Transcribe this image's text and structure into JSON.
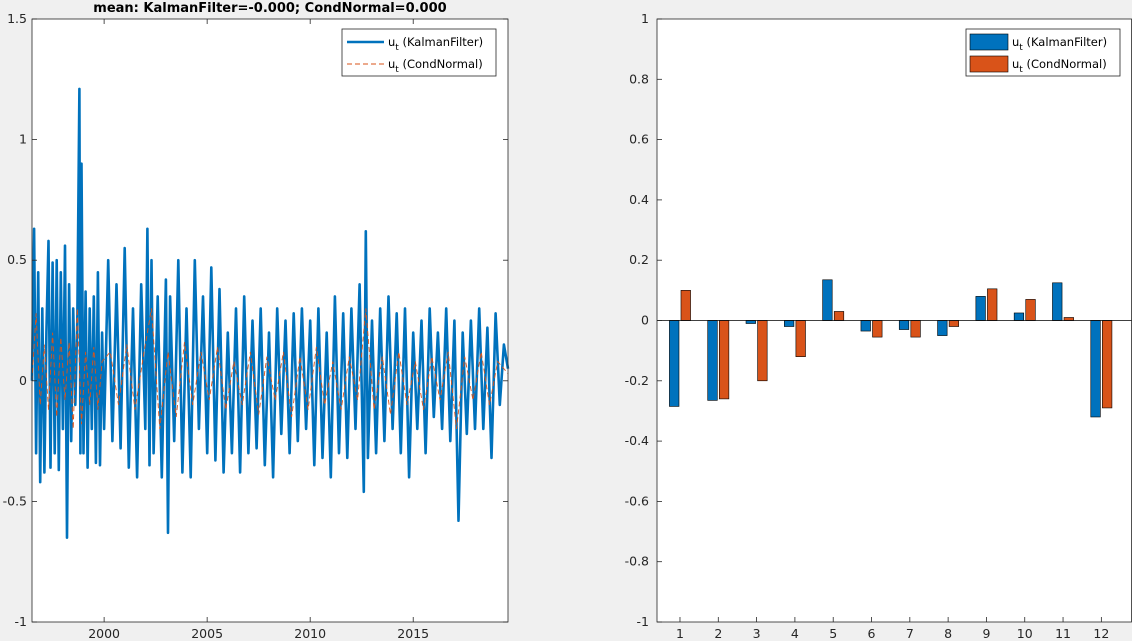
{
  "figure": {
    "left_title": "mean: KalmanFilter=-0.000; CondNormal=0.000"
  },
  "colors": {
    "kalman": "#0072BD",
    "condnormal": "#D95319",
    "axis": "#262626",
    "background": "#f0f0f0"
  },
  "chart_data": [
    {
      "type": "line",
      "title": "mean: KalmanFilter=-0.000; CondNormal=0.000",
      "xlabel": "",
      "ylabel": "",
      "xlim": [
        1996.5,
        2019.6
      ],
      "ylim": [
        -1,
        1.5
      ],
      "x_ticks": [
        2000,
        2005,
        2010,
        2015
      ],
      "x_tick_labels": [
        "2000",
        "2005",
        "2010",
        "2015"
      ],
      "y_ticks": [
        -1,
        -0.5,
        0,
        0.5,
        1,
        1.5
      ],
      "y_tick_labels": [
        "-1",
        "-0.5",
        "0",
        "0.5",
        "1",
        "1.5"
      ],
      "legend_position": "top-right",
      "grid": false,
      "series": [
        {
          "name": "u_t (KalmanFilter)",
          "legend_main": "u",
          "legend_sub": "t",
          "legend_rest": " (KalmanFilter)",
          "style": "solid",
          "x": [
            1996.5,
            1996.6,
            1996.7,
            1996.8,
            1996.9,
            1997.0,
            1997.1,
            1997.2,
            1997.3,
            1997.4,
            1997.5,
            1997.6,
            1997.7,
            1997.8,
            1997.9,
            1998.0,
            1998.1,
            1998.2,
            1998.3,
            1998.4,
            1998.5,
            1998.6,
            1998.7,
            1998.8,
            1998.85,
            1998.9,
            1999.0,
            1999.1,
            1999.2,
            1999.3,
            1999.4,
            1999.5,
            1999.6,
            1999.7,
            1999.8,
            1999.9,
            2000.0,
            2000.2,
            2000.4,
            2000.6,
            2000.8,
            2001.0,
            2001.2,
            2001.4,
            2001.6,
            2001.8,
            2002.0,
            2002.1,
            2002.2,
            2002.3,
            2002.4,
            2002.6,
            2002.8,
            2003.0,
            2003.1,
            2003.2,
            2003.4,
            2003.6,
            2003.8,
            2004.0,
            2004.2,
            2004.4,
            2004.6,
            2004.8,
            2005.0,
            2005.2,
            2005.4,
            2005.6,
            2005.8,
            2006.0,
            2006.2,
            2006.4,
            2006.6,
            2006.8,
            2007.0,
            2007.2,
            2007.4,
            2007.6,
            2007.8,
            2008.0,
            2008.2,
            2008.4,
            2008.6,
            2008.8,
            2009.0,
            2009.2,
            2009.4,
            2009.6,
            2009.8,
            2010.0,
            2010.2,
            2010.4,
            2010.6,
            2010.8,
            2011.0,
            2011.2,
            2011.4,
            2011.6,
            2011.8,
            2012.0,
            2012.2,
            2012.4,
            2012.6,
            2012.7,
            2012.8,
            2013.0,
            2013.2,
            2013.4,
            2013.6,
            2013.8,
            2014.0,
            2014.2,
            2014.4,
            2014.6,
            2014.8,
            2015.0,
            2015.2,
            2015.4,
            2015.6,
            2015.8,
            2016.0,
            2016.2,
            2016.4,
            2016.6,
            2016.8,
            2017.0,
            2017.2,
            2017.4,
            2017.6,
            2017.8,
            2018.0,
            2018.2,
            2018.4,
            2018.6,
            2018.8,
            2019.0,
            2019.2,
            2019.4,
            2019.6
          ],
          "y": [
            0.0,
            0.63,
            -0.3,
            0.45,
            -0.42,
            0.3,
            -0.38,
            0.2,
            0.58,
            -0.36,
            0.49,
            -0.3,
            0.5,
            -0.37,
            0.45,
            -0.2,
            0.56,
            -0.65,
            0.4,
            -0.25,
            0.3,
            -0.1,
            0.25,
            1.21,
            -0.3,
            0.9,
            -0.3,
            0.37,
            -0.36,
            0.3,
            -0.2,
            0.35,
            -0.34,
            0.45,
            -0.35,
            0.2,
            -0.2,
            0.5,
            -0.25,
            0.4,
            -0.28,
            0.55,
            -0.36,
            0.3,
            -0.4,
            0.4,
            -0.2,
            0.63,
            -0.35,
            0.5,
            -0.3,
            0.35,
            -0.4,
            0.42,
            -0.63,
            0.35,
            -0.25,
            0.5,
            -0.38,
            0.3,
            -0.4,
            0.5,
            -0.2,
            0.35,
            -0.3,
            0.47,
            -0.33,
            0.38,
            -0.38,
            0.2,
            -0.3,
            0.3,
            -0.38,
            0.35,
            -0.3,
            0.25,
            -0.28,
            0.3,
            -0.35,
            0.2,
            -0.4,
            0.3,
            -0.22,
            0.25,
            -0.3,
            0.28,
            -0.25,
            0.3,
            -0.2,
            0.25,
            -0.35,
            0.3,
            -0.32,
            0.2,
            -0.4,
            0.35,
            -0.3,
            0.28,
            -0.32,
            0.3,
            -0.2,
            0.4,
            -0.46,
            0.62,
            -0.32,
            0.25,
            -0.3,
            0.3,
            -0.25,
            0.35,
            -0.2,
            0.28,
            -0.3,
            0.3,
            -0.4,
            0.2,
            -0.2,
            0.25,
            -0.3,
            0.3,
            -0.15,
            0.2,
            -0.2,
            0.3,
            -0.25,
            0.25,
            -0.58,
            0.2,
            -0.22,
            0.25,
            -0.2,
            0.3,
            -0.2,
            0.22,
            -0.32,
            0.28,
            -0.1,
            0.15,
            0.05
          ]
        },
        {
          "name": "u_t (CondNormal)",
          "legend_main": "u",
          "legend_sub": "t",
          "legend_rest": " (CondNormal)",
          "style": "dashed",
          "x": [
            1996.5,
            1996.7,
            1996.9,
            1997.1,
            1997.3,
            1997.5,
            1997.7,
            1997.9,
            1998.1,
            1998.3,
            1998.5,
            1998.7,
            1998.9,
            1999.1,
            1999.3,
            1999.5,
            1999.7,
            1999.9,
            2000.3,
            2000.7,
            2001.1,
            2001.5,
            2001.9,
            2002.3,
            2002.7,
            2003.1,
            2003.5,
            2003.9,
            2004.3,
            2004.7,
            2005.1,
            2005.5,
            2005.9,
            2006.3,
            2006.7,
            2007.1,
            2007.5,
            2007.9,
            2008.3,
            2008.7,
            2009.1,
            2009.5,
            2009.9,
            2010.3,
            2010.7,
            2011.1,
            2011.5,
            2011.9,
            2012.3,
            2012.7,
            2013.1,
            2013.5,
            2013.9,
            2014.3,
            2014.7,
            2015.1,
            2015.5,
            2015.9,
            2016.3,
            2016.7,
            2017.1,
            2017.5,
            2017.9,
            2018.3,
            2018.7,
            2019.1,
            2019.6
          ],
          "y": [
            0.0,
            0.28,
            -0.1,
            0.15,
            -0.12,
            0.2,
            -0.15,
            0.18,
            -0.08,
            0.16,
            -0.2,
            0.3,
            -0.18,
            0.12,
            -0.1,
            0.14,
            -0.12,
            0.08,
            0.12,
            -0.1,
            0.15,
            -0.12,
            0.1,
            0.3,
            -0.2,
            0.12,
            -0.15,
            0.16,
            -0.1,
            0.12,
            -0.08,
            0.14,
            -0.12,
            0.08,
            -0.1,
            0.12,
            -0.14,
            0.1,
            -0.08,
            0.12,
            -0.15,
            0.1,
            -0.12,
            0.14,
            -0.1,
            0.08,
            -0.12,
            0.1,
            -0.08,
            0.3,
            -0.12,
            0.1,
            -0.14,
            0.12,
            -0.1,
            0.08,
            -0.12,
            0.1,
            -0.08,
            0.12,
            -0.2,
            0.1,
            -0.08,
            0.12,
            -0.1,
            0.08,
            0.03
          ]
        }
      ]
    },
    {
      "type": "bar",
      "title": "",
      "xlabel": "",
      "ylabel": "",
      "categories": [
        "1",
        "2",
        "3",
        "4",
        "5",
        "6",
        "7",
        "8",
        "9",
        "10",
        "11",
        "12"
      ],
      "ylim": [
        -1,
        1
      ],
      "y_ticks": [
        -1,
        -0.8,
        -0.6,
        -0.4,
        -0.2,
        0,
        0.2,
        0.4,
        0.6,
        0.8,
        1
      ],
      "y_tick_labels": [
        "-1",
        "-0.8",
        "-0.6",
        "-0.4",
        "-0.2",
        "0",
        "0.2",
        "0.4",
        "0.6",
        "0.8",
        "1"
      ],
      "legend_position": "top-right",
      "grid": false,
      "series": [
        {
          "name": "u_t (KalmanFilter)",
          "legend_main": "u",
          "legend_sub": "t",
          "legend_rest": " (KalmanFilter)",
          "values": [
            -0.285,
            -0.265,
            -0.01,
            -0.02,
            0.135,
            -0.035,
            -0.03,
            -0.05,
            0.08,
            0.025,
            0.125,
            -0.32
          ]
        },
        {
          "name": "u_t (CondNormal)",
          "legend_main": "u",
          "legend_sub": "t",
          "legend_rest": " (CondNormal)",
          "values": [
            0.1,
            -0.26,
            -0.2,
            -0.12,
            0.03,
            -0.055,
            -0.055,
            -0.02,
            0.105,
            0.07,
            0.01,
            -0.29
          ]
        }
      ]
    }
  ]
}
